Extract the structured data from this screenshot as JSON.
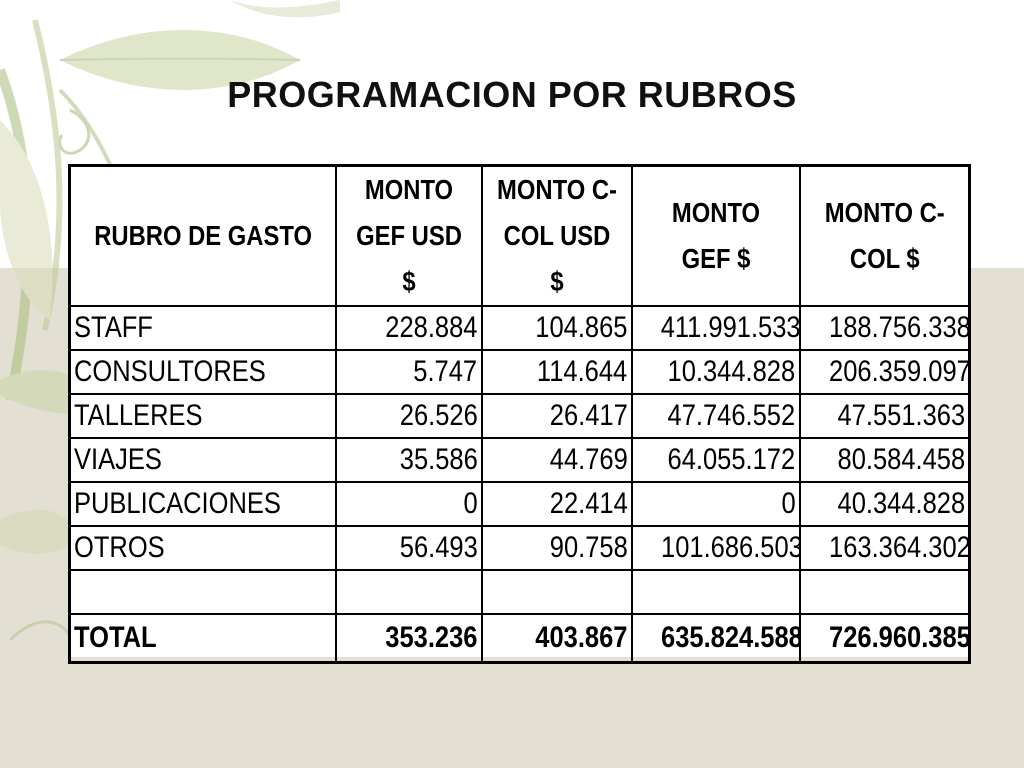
{
  "slide": {
    "title": "PROGRAMACION POR RUBROS"
  },
  "table": {
    "headers": {
      "rubro": "RUBRO DE GASTO",
      "gef_usd": "MONTO GEF USD $",
      "ccol_usd": "MONTO C-COL USD $",
      "gef_pesos": "MONTO GEF $",
      "ccol_pesos": "MONTO C-COL $"
    },
    "rows": [
      {
        "rubro": "STAFF",
        "gef_usd": "228.884",
        "ccol_usd": "104.865",
        "gef_pesos": "411.991.533",
        "ccol_pesos": "188.756.338"
      },
      {
        "rubro": "CONSULTORES",
        "gef_usd": "5.747",
        "ccol_usd": "114.644",
        "gef_pesos": "10.344.828",
        "ccol_pesos": "206.359.097"
      },
      {
        "rubro": "TALLERES",
        "gef_usd": "26.526",
        "ccol_usd": "26.417",
        "gef_pesos": "47.746.552",
        "ccol_pesos": "47.551.363"
      },
      {
        "rubro": "VIAJES",
        "gef_usd": "35.586",
        "ccol_usd": "44.769",
        "gef_pesos": "64.055.172",
        "ccol_pesos": "80.584.458"
      },
      {
        "rubro": "PUBLICACIONES",
        "gef_usd": "0",
        "ccol_usd": "22.414",
        "gef_pesos": "0",
        "ccol_pesos": "40.344.828"
      },
      {
        "rubro": "OTROS",
        "gef_usd": "56.493",
        "ccol_usd": "90.758",
        "gef_pesos": "101.686.503",
        "ccol_pesos": "163.364.302"
      },
      {
        "rubro": "",
        "gef_usd": "",
        "ccol_usd": "",
        "gef_pesos": "",
        "ccol_pesos": ""
      }
    ],
    "total": {
      "rubro": "TOTAL",
      "gef_usd": "353.236",
      "ccol_usd": "403.867",
      "gef_pesos": "635.824.588",
      "ccol_pesos": "726.960.385"
    }
  },
  "colors": {
    "background": "#ffffff",
    "band": "#e3e0d3",
    "leaf": "#b9c98f",
    "stem": "#8fae5e"
  }
}
